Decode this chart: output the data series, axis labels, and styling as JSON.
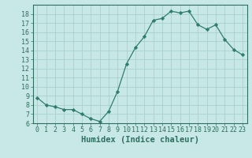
{
  "x": [
    0,
    1,
    2,
    3,
    4,
    5,
    6,
    7,
    8,
    9,
    10,
    11,
    12,
    13,
    14,
    15,
    16,
    17,
    18,
    19,
    20,
    21,
    22,
    23
  ],
  "y": [
    8.8,
    8.0,
    7.8,
    7.5,
    7.5,
    7.0,
    6.5,
    6.2,
    7.3,
    9.5,
    12.5,
    14.3,
    15.5,
    17.3,
    17.5,
    18.3,
    18.1,
    18.3,
    16.8,
    16.3,
    16.8,
    15.2,
    14.1,
    13.5
  ],
  "line_color": "#2e7d6e",
  "marker": "D",
  "marker_size": 2.2,
  "bg_color": "#c8e8e8",
  "grid_color": "#aacfcf",
  "xlabel": "Humidex (Indice chaleur)",
  "ylim": [
    6,
    19
  ],
  "xlim": [
    -0.5,
    23.5
  ],
  "yticks": [
    6,
    7,
    8,
    9,
    10,
    11,
    12,
    13,
    14,
    15,
    16,
    17,
    18
  ],
  "xticks": [
    0,
    1,
    2,
    3,
    4,
    5,
    6,
    7,
    8,
    9,
    10,
    11,
    12,
    13,
    14,
    15,
    16,
    17,
    18,
    19,
    20,
    21,
    22,
    23
  ],
  "tick_label_fontsize": 6,
  "xlabel_fontsize": 7.5,
  "axis_color": "#2e6e60"
}
